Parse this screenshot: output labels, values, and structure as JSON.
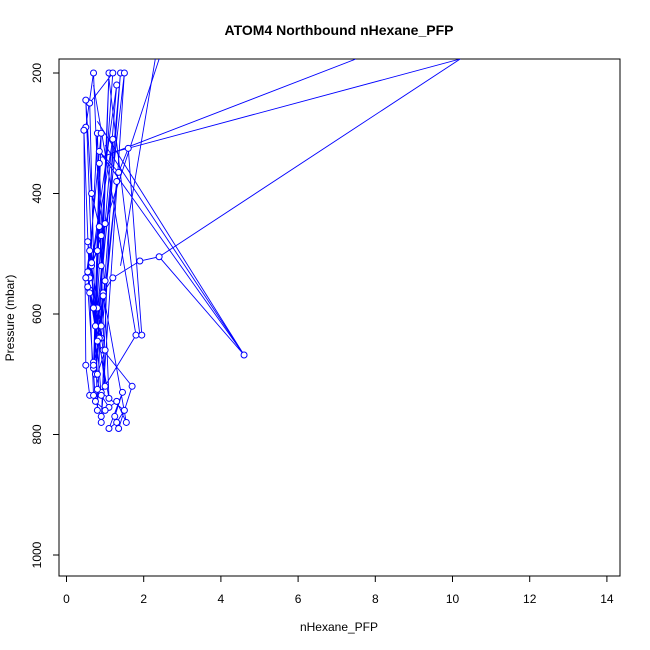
{
  "chart_data": {
    "type": "line",
    "title": "ATOM4 Northbound nHexane_PFP",
    "xlabel": "nHexane_PFP",
    "ylabel": "Pressure (mbar)",
    "xlim": [
      0,
      14
    ],
    "ylim": [
      1000,
      200
    ],
    "y_reversed": true,
    "x_ticks": [
      0,
      2,
      4,
      6,
      8,
      10,
      12,
      14
    ],
    "y_ticks": [
      200,
      400,
      600,
      800,
      1000
    ],
    "grid": false,
    "legend": "none",
    "series_color": "#0000ff",
    "series": [
      {
        "x": [
          0.5,
          0.7,
          0.9,
          1.1,
          0.8,
          0.6,
          1.2,
          0.9,
          0.7,
          1.3,
          0.6,
          0.8,
          1.0,
          0.55,
          0.9,
          1.4,
          0.7,
          0.85,
          1.1,
          0.6,
          0.9,
          1.3,
          0.75,
          1.0,
          0.65,
          1.2,
          0.9,
          1.5,
          0.8,
          0.95,
          1.7,
          1.35,
          1.25,
          1.45,
          1.1,
          1.3,
          1.5,
          0.9,
          1.8,
          1.95,
          1.6,
          1.35,
          0.85,
          4.6,
          2.4,
          1.9,
          1.2,
          0.95,
          1.55,
          1.3,
          1.1,
          0.8,
          0.6,
          0.5,
          0.45,
          0.7,
          0.9,
          1.0,
          0.75,
          0.55,
          0.65,
          0.8,
          0.5,
          0.6,
          0.9,
          0.7,
          0.85,
          1.0,
          0.95,
          0.8,
          0.6,
          0.55,
          0.9,
          0.75,
          0.85,
          0.65,
          0.5,
          0.7,
          0.8,
          1.0
        ],
        "y": [
          290,
          200,
          520,
          200,
          760,
          250,
          200,
          470,
          680,
          220,
          540,
          300,
          720,
          480,
          620,
          200,
          690,
          350,
          740,
          560,
          640,
          380,
          700,
          450,
          520,
          310,
          780,
          200,
          590,
          660,
          720,
          790,
          770,
          730,
          790,
          780,
          760,
          730,
          635,
          635,
          325,
          365,
          330,
          668,
          505,
          512,
          540,
          565,
          780,
          745,
          755,
          725,
          735,
          685,
          295,
          735,
          770,
          760,
          745,
          555,
          515,
          495,
          540,
          495,
          735,
          685,
          640,
          545,
          570,
          645,
          565,
          530,
          300,
          620,
          455,
          400,
          245,
          590,
          700,
          660
        ]
      }
    ],
    "lines_to_top_edge": [
      {
        "from": [
          1.3,
          330
        ],
        "to": [
          10.2,
          200
        ]
      },
      {
        "from": [
          0.9,
          340
        ],
        "to": [
          7.5,
          200
        ]
      },
      {
        "from": [
          1.0,
          450
        ],
        "to": [
          2.4,
          200
        ]
      },
      {
        "from": [
          1.4,
          520
        ],
        "to": [
          2.3,
          200
        ]
      },
      {
        "from": [
          2.4,
          505
        ],
        "to": [
          10.2,
          200
        ]
      }
    ],
    "extra_segments": [
      {
        "from": [
          0.8,
          280
        ],
        "to": [
          4.6,
          668
        ]
      },
      {
        "from": [
          1.0,
          320
        ],
        "to": [
          4.6,
          668
        ]
      },
      {
        "from": [
          1.1,
          210
        ],
        "to": [
          1.9,
          635
        ]
      },
      {
        "from": [
          0.7,
          220
        ],
        "to": [
          1.8,
          635
        ]
      }
    ]
  }
}
